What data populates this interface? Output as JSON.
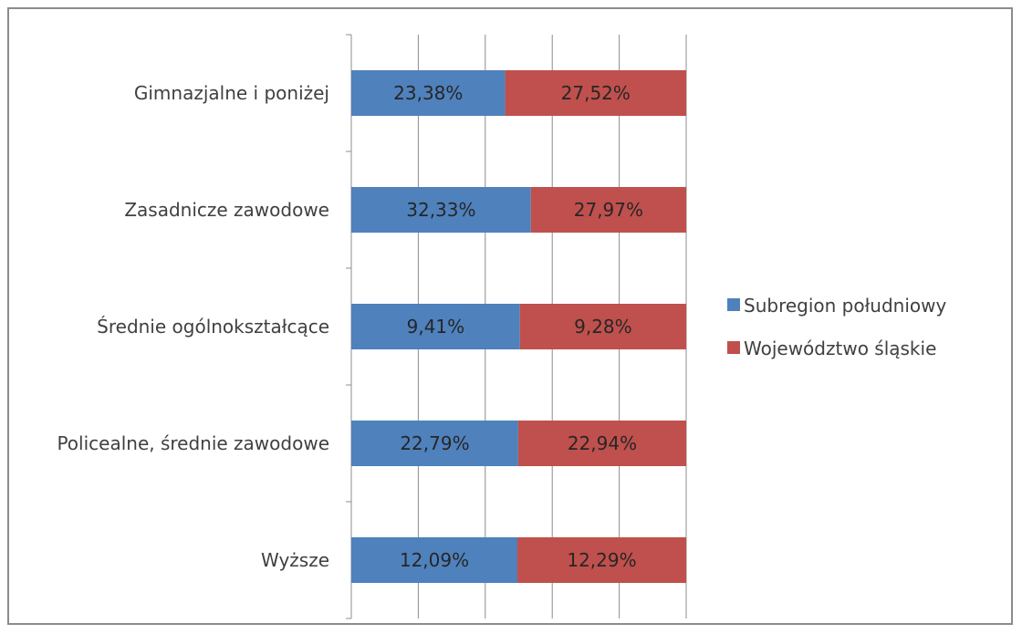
{
  "chart_data": {
    "type": "bar",
    "orientation": "horizontal",
    "stacked": "percent",
    "categories": [
      "Gimnazjalne i poniżej",
      "Zasadnicze zawodowe",
      "Średnie ogólnokształcące",
      "Policealne, średnie zawodowe",
      "Wyższe"
    ],
    "series": [
      {
        "name": "Subregion południowy",
        "color": "#4F81BD",
        "values": [
          23.38,
          32.33,
          9.41,
          22.79,
          12.09
        ],
        "labels": [
          "23,38%",
          "32,33%",
          "9,41%",
          "22,79%",
          "12,09%"
        ]
      },
      {
        "name": "Województwo śląskie",
        "color": "#C0504D",
        "values": [
          27.52,
          27.97,
          9.28,
          22.94,
          12.29
        ],
        "labels": [
          "27,52%",
          "27,97%",
          "9,28%",
          "22,94%",
          "12,29%"
        ]
      }
    ],
    "title": "",
    "xlabel": "",
    "ylabel": "",
    "xlim": [
      0,
      100
    ],
    "grid": true,
    "legend_position": "right"
  }
}
